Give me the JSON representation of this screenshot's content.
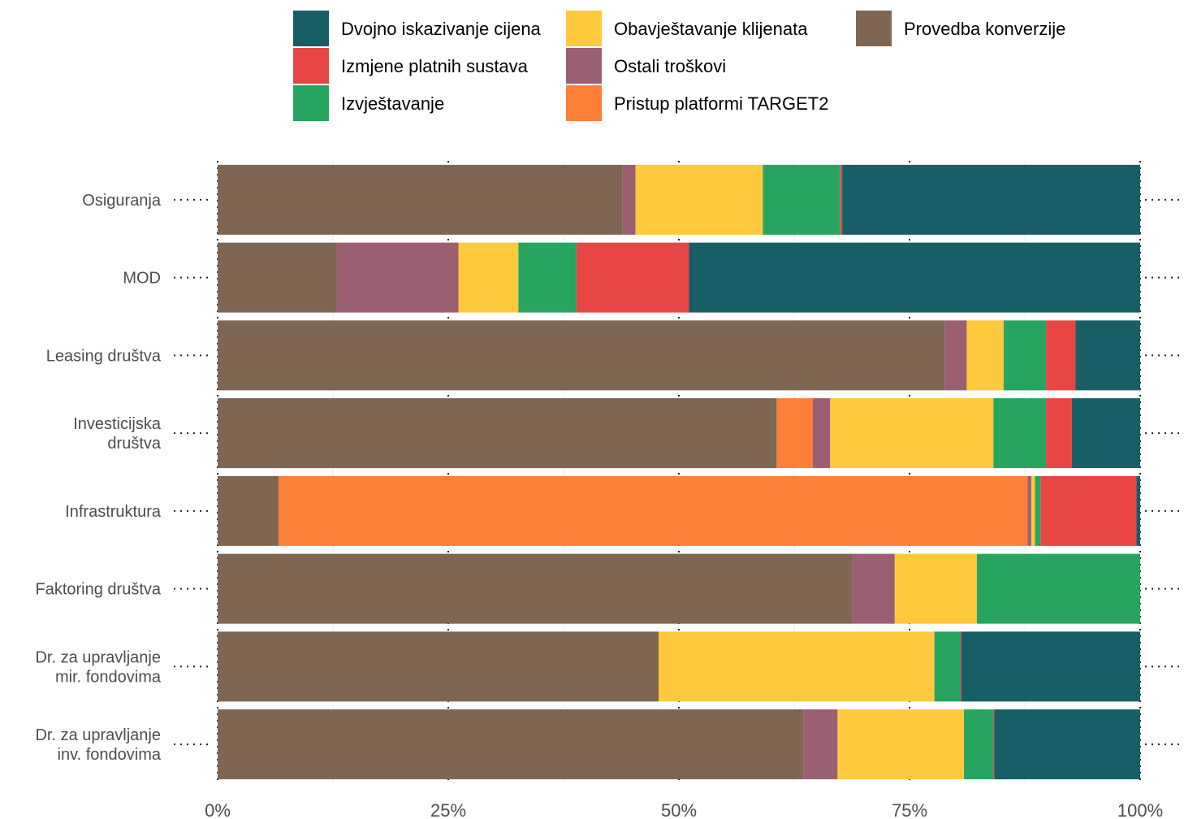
{
  "chart_data": {
    "type": "bar",
    "orientation": "horizontal",
    "stacked": true,
    "normalized": true,
    "xlim": [
      0,
      100
    ],
    "x_ticks": [
      "0%",
      "25%",
      "50%",
      "75%",
      "100%"
    ],
    "grid": true,
    "legend_position": "top",
    "categories": [
      [
        "Osiguranja"
      ],
      [
        "MOD"
      ],
      [
        "Leasing društva"
      ],
      [
        "Investicijska",
        "društva"
      ],
      [
        "Infrastruktura"
      ],
      [
        "Faktoring društva"
      ],
      [
        "Dr. za upravljanje",
        "mir. fondovima"
      ],
      [
        "Dr. za upravljanje",
        "inv. fondovima"
      ]
    ],
    "series": [
      {
        "name": "Provedba konverzije",
        "color": "#7f6653",
        "values": [
          43.9,
          12.9,
          78.8,
          60.6,
          6.6,
          68.8,
          47.8,
          63.5
        ]
      },
      {
        "name": "Pristup platformi TARGET2",
        "color": "#fe7f37",
        "values": [
          0,
          0,
          0,
          3.9,
          81.2,
          0,
          0,
          0
        ]
      },
      {
        "name": "Ostali troškovi",
        "color": "#9b5f72",
        "values": [
          1.4,
          13.2,
          2.4,
          1.9,
          0.4,
          4.6,
          0,
          3.7
        ]
      },
      {
        "name": "Obavještavanje klijenata",
        "color": "#fec93c",
        "values": [
          13.8,
          6.5,
          4.0,
          17.7,
          0.4,
          8.9,
          29.9,
          13.7
        ]
      },
      {
        "name": "Izvještavanje",
        "color": "#28a461",
        "values": [
          8.4,
          6.3,
          4.6,
          5.7,
          0.6,
          17.7,
          2.8,
          3.2
        ]
      },
      {
        "name": "Izmjene platnih sustava",
        "color": "#e84645",
        "values": [
          0.2,
          12.2,
          3.2,
          2.8,
          10.4,
          0,
          0.1,
          0.1
        ]
      },
      {
        "name": "Dvojno iskazivanje cijena",
        "color": "#185e67",
        "values": [
          32.3,
          48.9,
          7.0,
          7.4,
          0.4,
          0,
          19.4,
          15.8
        ]
      }
    ],
    "legend_order": [
      "Dvojno iskazivanje cijena",
      "Izmjene platnih sustava",
      "Izvještavanje",
      "Obavještavanje klijenata",
      "Ostali troškovi",
      "Pristup platformi TARGET2",
      "Provedba konverzije"
    ]
  }
}
